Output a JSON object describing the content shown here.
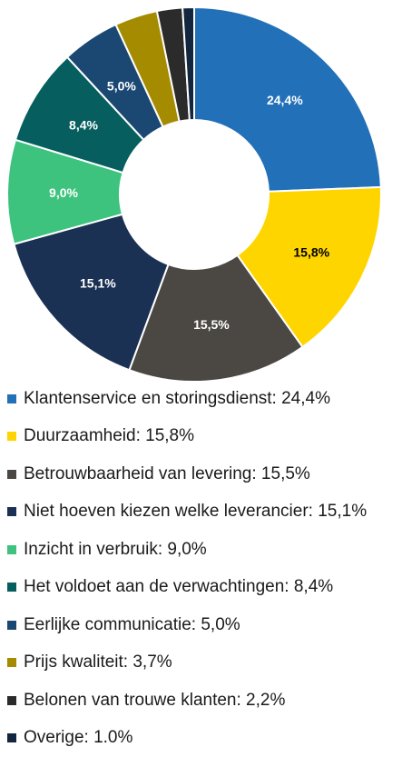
{
  "chart_data": {
    "type": "pie",
    "subtype": "donut",
    "categories": [
      "Klantenservice en storingsdienst",
      "Duurzaamheid",
      "Betrouwbaarheid van levering",
      "Niet hoeven kiezen welke leverancier",
      "Inzicht in verbruik",
      "Het voldoet aan de verwachtingen",
      "Eerlijke communicatie",
      "Prijs kwaliteit",
      "Belonen van trouwe klanten",
      "Overige"
    ],
    "values": [
      24.4,
      15.8,
      15.5,
      15.1,
      9.0,
      8.4,
      5.0,
      3.7,
      2.2,
      1.0
    ],
    "data_labels": [
      "24,4%",
      "15,8%",
      "15,5%",
      "15,1%",
      "9,0%",
      "8,4%",
      "5,0%",
      "",
      "",
      ""
    ],
    "legend_entries": [
      "Klantenservice en storingsdienst: 24,4%",
      "Duurzaamheid: 15,8%",
      "Betrouwbaarheid van levering: 15,5%",
      "Niet hoeven kiezen welke leverancier: 15,1%",
      "Inzicht in verbruik: 9,0%",
      "Het voldoet aan de verwachtingen: 8,4%",
      "Eerlijke communicatie: 5,0%",
      "Prijs kwaliteit: 3,7%",
      "Belonen van trouwe klanten: 2,2%",
      "Overige: 1.0%"
    ],
    "colors": [
      "#2270B8",
      "#FFD500",
      "#4B4844",
      "#1B3153",
      "#3DC37E",
      "#075E5E",
      "#1B4873",
      "#A48B00",
      "#2B2B2B",
      "#132640"
    ],
    "label_colors": [
      "#ffffff",
      "#000000",
      "#ffffff",
      "#ffffff",
      "#ffffff",
      "#ffffff",
      "#ffffff",
      "#ffffff",
      "#ffffff",
      "#ffffff"
    ],
    "start_angle": "12 o'clock",
    "direction": "clockwise",
    "legend_position": "bottom",
    "title": ""
  }
}
